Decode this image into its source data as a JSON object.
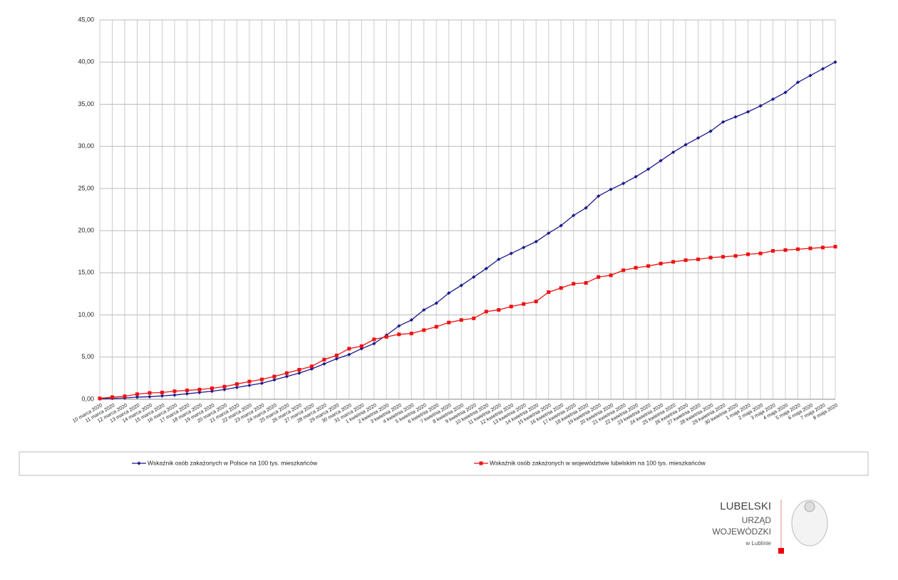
{
  "chart_data": {
    "type": "line",
    "categories": [
      "10 marca 2020",
      "11 marca 2020",
      "12 marca 2020",
      "13 marca 2020",
      "14 marca 2020",
      "15 marca 2020",
      "16 marca 2020",
      "17 marca 2020",
      "18 marca 2020",
      "19 marca 2020",
      "20 marca 2020",
      "21 marca 2020",
      "22 marca 2020",
      "23 marca 2020",
      "24 marca 2020",
      "25 marca 2020",
      "26 marca 2020",
      "27 marca 2020",
      "28 marca 2020",
      "29 marca 2020",
      "30 marca 2020",
      "31 marca 2020",
      "1 kwietnia 2020",
      "2 kwietnia 2020",
      "3 kwietnia 2020",
      "4 kwietnia 2020",
      "5 kwietnia 2020",
      "6 kwietnia 2020",
      "7 kwietnia 2020",
      "8 kwietnia 2020",
      "9 kwietnia 2020",
      "10 kwietnia 2020",
      "11 kwietnia 2020",
      "12 kwietnia 2020",
      "13 kwietnia 2020",
      "14 kwietnia 2020",
      "15 kwietnia 2020",
      "16 kwietnia 2020",
      "17 kwietnia 2020",
      "18 kwietnia 2020",
      "19 kwietnia 2020",
      "20 kwietnia 2020",
      "21 kwietnia 2020",
      "22 kwietnia 2020",
      "23 kwietnia 2020",
      "24 kwietnia 2020",
      "25 kwietnia 2020",
      "26 kwietnia 2020",
      "27 kwietnia 2020",
      "28 kwietnia 2020",
      "29 kwietnia 2020",
      "30 kwietnia 2020",
      "1 maja 2020",
      "2 maja 2020",
      "3 maja 2020",
      "4 maja 2020",
      "5 maja 2020",
      "6 maja 2020",
      "7 maja 2020",
      "8 maja 2020"
    ],
    "series": [
      {
        "name": "Wskaźnik osób zakażonych w Polsce na 100 tys. mieszkańców",
        "color": "#1a1a8c",
        "values": [
          0.05,
          0.1,
          0.15,
          0.25,
          0.3,
          0.4,
          0.5,
          0.65,
          0.8,
          0.95,
          1.15,
          1.4,
          1.65,
          1.9,
          2.3,
          2.7,
          3.1,
          3.6,
          4.2,
          4.8,
          5.3,
          6.0,
          6.6,
          7.6,
          8.7,
          9.4,
          10.6,
          11.4,
          12.6,
          13.5,
          14.5,
          15.5,
          16.6,
          17.3,
          18.0,
          18.7,
          19.7,
          20.6,
          21.8,
          22.7,
          24.1,
          24.9,
          25.6,
          26.4,
          27.3,
          28.3,
          29.3,
          30.2,
          31.0,
          31.8,
          32.9,
          33.5,
          34.1,
          34.8,
          35.6,
          36.4,
          37.6,
          38.4,
          39.2,
          40.0
        ]
      },
      {
        "name": "Wskaźnik osób zakażonych w województwie lubelskim na 100 tys. mieszkańców",
        "color": "#ee1111",
        "values": [
          0.1,
          0.25,
          0.35,
          0.6,
          0.75,
          0.8,
          0.95,
          1.05,
          1.15,
          1.3,
          1.5,
          1.8,
          2.1,
          2.35,
          2.7,
          3.1,
          3.5,
          3.9,
          4.7,
          5.2,
          6.0,
          6.3,
          7.1,
          7.4,
          7.7,
          7.8,
          8.2,
          8.6,
          9.1,
          9.4,
          9.6,
          10.4,
          10.6,
          11.0,
          11.3,
          11.6,
          12.7,
          13.2,
          13.7,
          13.8,
          14.5,
          14.7,
          15.3,
          15.6,
          15.8,
          16.1,
          16.3,
          16.5,
          16.6,
          16.8,
          16.9,
          17.0,
          17.2,
          17.3,
          17.6,
          17.7,
          17.8,
          17.9,
          18.0,
          18.1
        ]
      }
    ],
    "ylim": [
      0,
      45
    ],
    "yticks": [
      {
        "value": 0,
        "label": "0,00"
      },
      {
        "value": 5,
        "label": "5,00"
      },
      {
        "value": 10,
        "label": "10,00"
      },
      {
        "value": 15,
        "label": "15,00"
      },
      {
        "value": 20,
        "label": "20,00"
      },
      {
        "value": 25,
        "label": "25,00"
      },
      {
        "value": 30,
        "label": "30,00"
      },
      {
        "value": 35,
        "label": "35,00"
      },
      {
        "value": 40,
        "label": "40,00"
      },
      {
        "value": 45,
        "label": "45,00"
      }
    ],
    "grid": true,
    "legend": "bottom"
  },
  "logo": {
    "line1": "LUBELSKI",
    "line2": "URZĄD",
    "line3": "WOJEWÓDZKI",
    "line4": "w Lublinie"
  }
}
